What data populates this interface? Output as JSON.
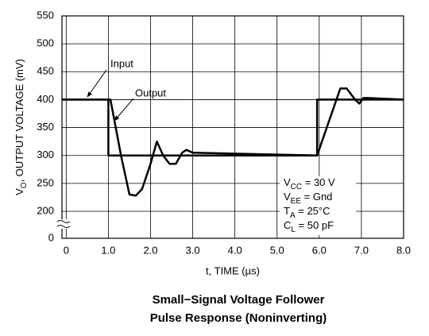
{
  "chart_data": {
    "type": "line",
    "title": [
      "Small−Signal Voltage Follower",
      "Pulse Response (Noninverting)"
    ],
    "x_label": "t, TIME  (µs)",
    "y_label": {
      "base": "V",
      "sub": "O",
      "rest": ", OUTPUT VOLTAGE (mV)"
    },
    "xlim": [
      -0.1,
      8.0
    ],
    "xticks": [
      0,
      {
        "value": 1,
        "label": "1.0"
      },
      {
        "value": 2,
        "label": "2.0"
      },
      {
        "value": 3,
        "label": "3.0"
      },
      {
        "value": 4,
        "label": "4.0"
      },
      {
        "value": 5,
        "label": "5.0"
      },
      {
        "value": 6,
        "label": "6.0"
      },
      {
        "value": 7,
        "label": "7.0"
      },
      {
        "value": 8,
        "label": "8.0"
      }
    ],
    "ylim": [
      0,
      550
    ],
    "y_axis_break": [
      0,
      200
    ],
    "yticks": [
      0,
      200,
      250,
      300,
      350,
      400,
      450,
      500,
      550
    ],
    "grid": true,
    "series": [
      {
        "name": "Input",
        "color": "#000000",
        "x": [
          -0.1,
          1.0,
          1.0,
          5.95,
          5.95,
          8.0
        ],
        "values": [
          400,
          400,
          300,
          300,
          400,
          400
        ]
      },
      {
        "name": "Output",
        "color": "#000000",
        "x": [
          -0.1,
          1.0,
          1.05,
          1.3,
          1.5,
          1.65,
          1.8,
          2.0,
          2.15,
          2.3,
          2.45,
          2.6,
          2.75,
          2.85,
          3.0,
          5.95,
          6.5,
          6.65,
          6.85,
          6.95,
          7.05,
          7.15,
          8.0
        ],
        "values": [
          400,
          400,
          400,
          300,
          230,
          228,
          240,
          285,
          325,
          300,
          285,
          285,
          305,
          310,
          305,
          300,
          420,
          420,
          400,
          393,
          403,
          403,
          400
        ]
      }
    ],
    "conditions": [
      {
        "base": "V",
        "sub": "CC",
        "rest": " = 30 V"
      },
      {
        "base": "V",
        "sub": "EE",
        "rest": " = Gnd"
      },
      {
        "base": "T",
        "sub": "A",
        "rest": " = 25°C"
      },
      {
        "base": "C",
        "sub": "L",
        "rest": " = 50 pF"
      }
    ]
  }
}
